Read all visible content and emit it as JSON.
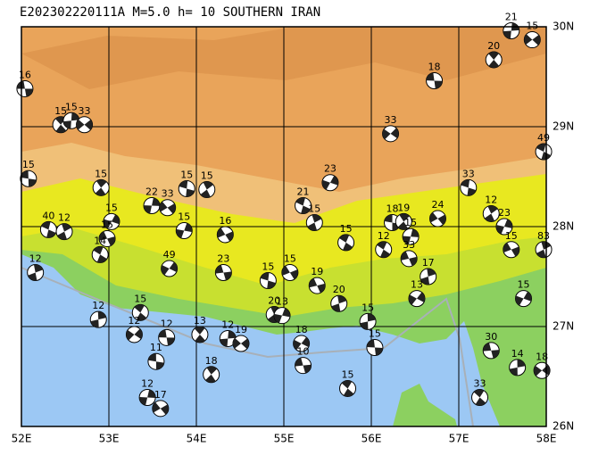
{
  "title": "E202302220111A  M=5.0  h= 10 SOUTHERN IRAN",
  "lon_range": [
    52,
    58
  ],
  "lat_range": [
    26,
    30
  ],
  "lon_ticks": [
    {
      "value": 52,
      "label": "52E"
    },
    {
      "value": 53,
      "label": "53E"
    },
    {
      "value": 54,
      "label": "54E"
    },
    {
      "value": 55,
      "label": "55E"
    },
    {
      "value": 56,
      "label": "56E"
    },
    {
      "value": 57,
      "label": "57E"
    },
    {
      "value": 58,
      "label": "58E"
    }
  ],
  "lat_ticks": [
    {
      "value": 30,
      "label": "30N"
    },
    {
      "value": 29,
      "label": "29N"
    },
    {
      "value": 28,
      "label": "28N"
    },
    {
      "value": 27,
      "label": "27N"
    },
    {
      "value": 26,
      "label": "26N"
    }
  ],
  "events": [
    {
      "lon": 52.04,
      "lat": 29.38,
      "depth": 16
    },
    {
      "lon": 52.45,
      "lat": 29.02,
      "depth": 15
    },
    {
      "lon": 52.57,
      "lat": 29.06,
      "depth": 15
    },
    {
      "lon": 52.72,
      "lat": 29.02,
      "depth": 33
    },
    {
      "lon": 52.08,
      "lat": 28.48,
      "depth": 15
    },
    {
      "lon": 52.91,
      "lat": 28.39,
      "depth": 15
    },
    {
      "lon": 53.49,
      "lat": 28.21,
      "depth": 22
    },
    {
      "lon": 53.67,
      "lat": 28.19,
      "depth": 33
    },
    {
      "lon": 53.89,
      "lat": 28.38,
      "depth": 15
    },
    {
      "lon": 54.12,
      "lat": 28.37,
      "depth": 15
    },
    {
      "lon": 53.86,
      "lat": 27.96,
      "depth": 15
    },
    {
      "lon": 54.33,
      "lat": 27.92,
      "depth": 16
    },
    {
      "lon": 52.31,
      "lat": 27.97,
      "depth": 40
    },
    {
      "lon": 52.49,
      "lat": 27.95,
      "depth": 12
    },
    {
      "lon": 53.03,
      "lat": 28.05,
      "depth": 15
    },
    {
      "lon": 52.98,
      "lat": 27.88,
      "depth": 15
    },
    {
      "lon": 52.9,
      "lat": 27.72,
      "depth": 14
    },
    {
      "lon": 52.16,
      "lat": 27.54,
      "depth": 12
    },
    {
      "lon": 53.69,
      "lat": 27.58,
      "depth": 49
    },
    {
      "lon": 54.31,
      "lat": 27.54,
      "depth": 23
    },
    {
      "lon": 53.36,
      "lat": 27.14,
      "depth": 15
    },
    {
      "lon": 52.88,
      "lat": 27.07,
      "depth": 12
    },
    {
      "lon": 53.29,
      "lat": 26.92,
      "depth": 12
    },
    {
      "lon": 53.66,
      "lat": 26.89,
      "depth": 12
    },
    {
      "lon": 54.04,
      "lat": 26.92,
      "depth": 13
    },
    {
      "lon": 54.36,
      "lat": 26.88,
      "depth": 12
    },
    {
      "lon": 54.51,
      "lat": 26.83,
      "depth": 19
    },
    {
      "lon": 53.54,
      "lat": 26.65,
      "depth": 11
    },
    {
      "lon": 54.17,
      "lat": 26.52,
      "depth": 18
    },
    {
      "lon": 53.44,
      "lat": 26.29,
      "depth": 12
    },
    {
      "lon": 53.59,
      "lat": 26.18,
      "depth": 17
    },
    {
      "lon": 54.82,
      "lat": 27.46,
      "depth": 15
    },
    {
      "lon": 54.89,
      "lat": 27.12,
      "depth": 20
    },
    {
      "lon": 54.98,
      "lat": 27.11,
      "depth": 13
    },
    {
      "lon": 55.07,
      "lat": 27.54,
      "depth": 15
    },
    {
      "lon": 55.22,
      "lat": 28.21,
      "depth": 21
    },
    {
      "lon": 55.35,
      "lat": 28.04,
      "depth": 15
    },
    {
      "lon": 55.53,
      "lat": 28.44,
      "depth": 23
    },
    {
      "lon": 55.38,
      "lat": 27.41,
      "depth": 19
    },
    {
      "lon": 55.71,
      "lat": 27.84,
      "depth": 15
    },
    {
      "lon": 55.63,
      "lat": 27.23,
      "depth": 20
    },
    {
      "lon": 55.2,
      "lat": 26.83,
      "depth": 18
    },
    {
      "lon": 55.22,
      "lat": 26.61,
      "depth": 10
    },
    {
      "lon": 55.73,
      "lat": 26.38,
      "depth": 15
    },
    {
      "lon": 55.96,
      "lat": 27.05,
      "depth": 15
    },
    {
      "lon": 56.22,
      "lat": 28.93,
      "depth": 33
    },
    {
      "lon": 56.72,
      "lat": 29.46,
      "depth": 18
    },
    {
      "lon": 57.4,
      "lat": 29.67,
      "depth": 20
    },
    {
      "lon": 57.6,
      "lat": 29.96,
      "depth": 21
    },
    {
      "lon": 57.84,
      "lat": 29.87,
      "depth": 15
    },
    {
      "lon": 56.24,
      "lat": 28.04,
      "depth": 18
    },
    {
      "lon": 56.37,
      "lat": 28.05,
      "depth": 19
    },
    {
      "lon": 56.45,
      "lat": 27.9,
      "depth": 15
    },
    {
      "lon": 56.76,
      "lat": 28.08,
      "depth": 24
    },
    {
      "lon": 57.11,
      "lat": 28.39,
      "depth": 33
    },
    {
      "lon": 57.37,
      "lat": 28.13,
      "depth": 12
    },
    {
      "lon": 57.52,
      "lat": 28.0,
      "depth": 23
    },
    {
      "lon": 57.6,
      "lat": 27.77,
      "depth": 15
    },
    {
      "lon": 57.97,
      "lat": 28.75,
      "depth": 49
    },
    {
      "lon": 57.97,
      "lat": 27.77,
      "depth": 83
    },
    {
      "lon": 57.74,
      "lat": 27.28,
      "depth": 15
    },
    {
      "lon": 56.43,
      "lat": 27.68,
      "depth": 33
    },
    {
      "lon": 56.14,
      "lat": 27.77,
      "depth": 12
    },
    {
      "lon": 56.65,
      "lat": 27.5,
      "depth": 17
    },
    {
      "lon": 56.52,
      "lat": 27.28,
      "depth": 13
    },
    {
      "lon": 57.37,
      "lat": 26.76,
      "depth": 30
    },
    {
      "lon": 57.24,
      "lat": 26.29,
      "depth": 33
    },
    {
      "lon": 57.67,
      "lat": 26.59,
      "depth": 14
    },
    {
      "lon": 57.95,
      "lat": 26.56,
      "depth": 18
    },
    {
      "lon": 56.04,
      "lat": 26.79,
      "depth": 15
    }
  ]
}
